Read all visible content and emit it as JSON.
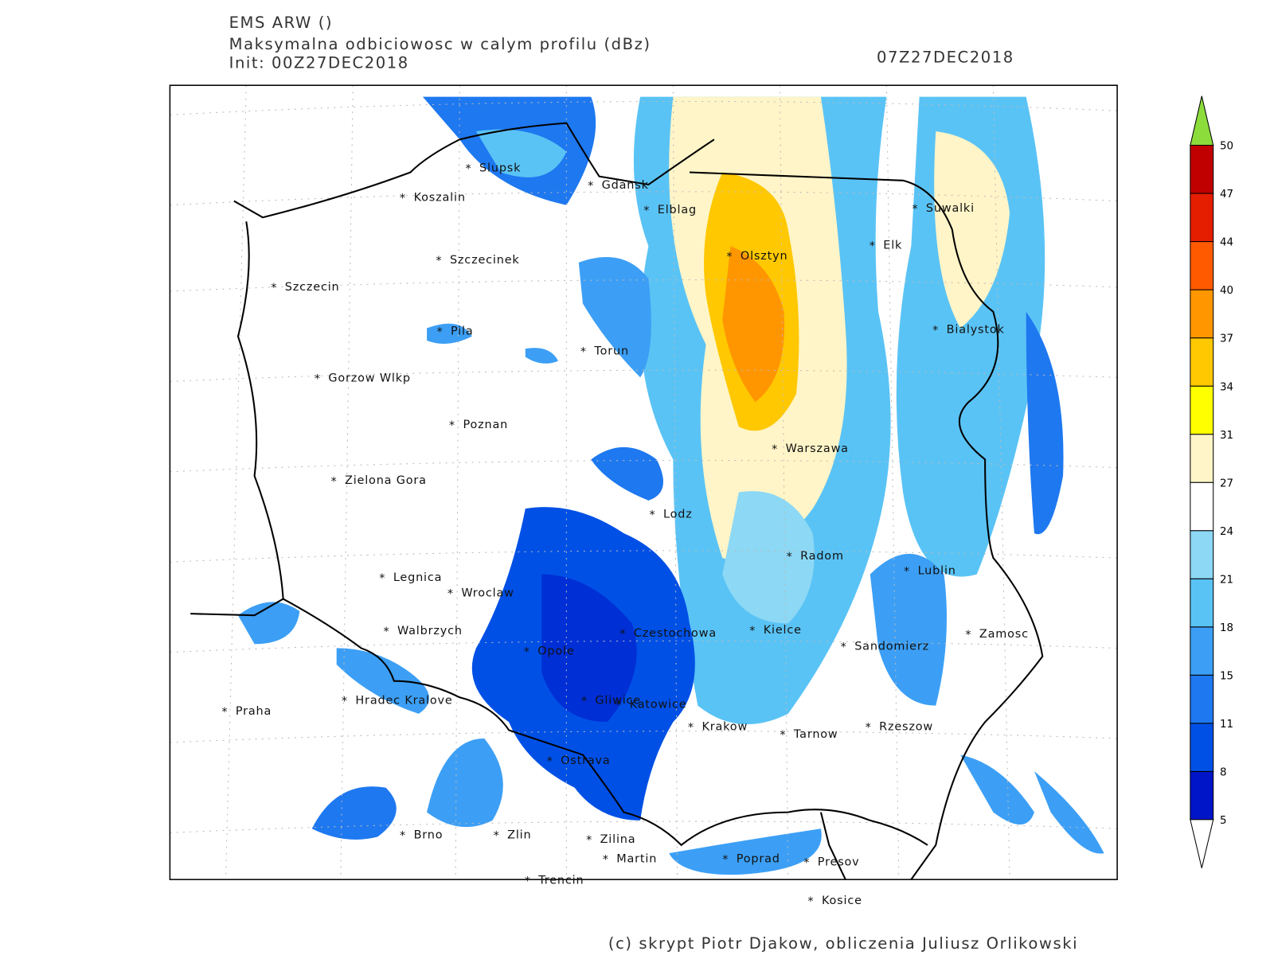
{
  "header": {
    "model": "EMS ARW ()",
    "field": "Maksymalna odbiciowosc w calym profilu (dBz)",
    "init": "Init: 00Z27DEC2018",
    "valid": "07Z27DEC2018"
  },
  "cities": [
    "Slupsk",
    "Koszalin",
    "Gdansk",
    "Elblag",
    "Suwalki",
    "Elk",
    "Olsztyn",
    "Szczecinek",
    "Szczecin",
    "Bialystok",
    "Pila",
    "Torun",
    "Gorzow Wlkp",
    "Poznan",
    "Warszawa",
    "Zielona Gora",
    "Lodz",
    "Radom",
    "Lublin",
    "Legnica",
    "Wroclaw",
    "Walbrzych",
    "Czestochowa",
    "Kielce",
    "Zamosc",
    "Sandomierz",
    "Opole",
    "Praha",
    "Hradec Kralove",
    "Gliwice",
    "Katowice",
    "Krakow",
    "Tarnow",
    "Rzeszow",
    "Ostrava",
    "Brno",
    "Zlin",
    "Zilina",
    "Martin",
    "Poprad",
    "Presov",
    "Trencin",
    "Kosice"
  ],
  "colorbar": {
    "levels": [
      5,
      8,
      11,
      15,
      18,
      21,
      24,
      27,
      31,
      34,
      37,
      40,
      44,
      47,
      50
    ],
    "colors": [
      "#0014c8",
      "#0050e6",
      "#1e78f0",
      "#3c9ff5",
      "#5ac3f5",
      "#8cd8f5",
      "#ffffff",
      "#fff5c8",
      "#ffff00",
      "#ffc800",
      "#ff9600",
      "#ff5a00",
      "#e61e00",
      "#c00000"
    ],
    "under_color": "#ffffff",
    "over_color": "#8cdc3c"
  },
  "footer": "(c) skrypt Piotr Djakow, obliczenia Juliusz Orlikowski"
}
